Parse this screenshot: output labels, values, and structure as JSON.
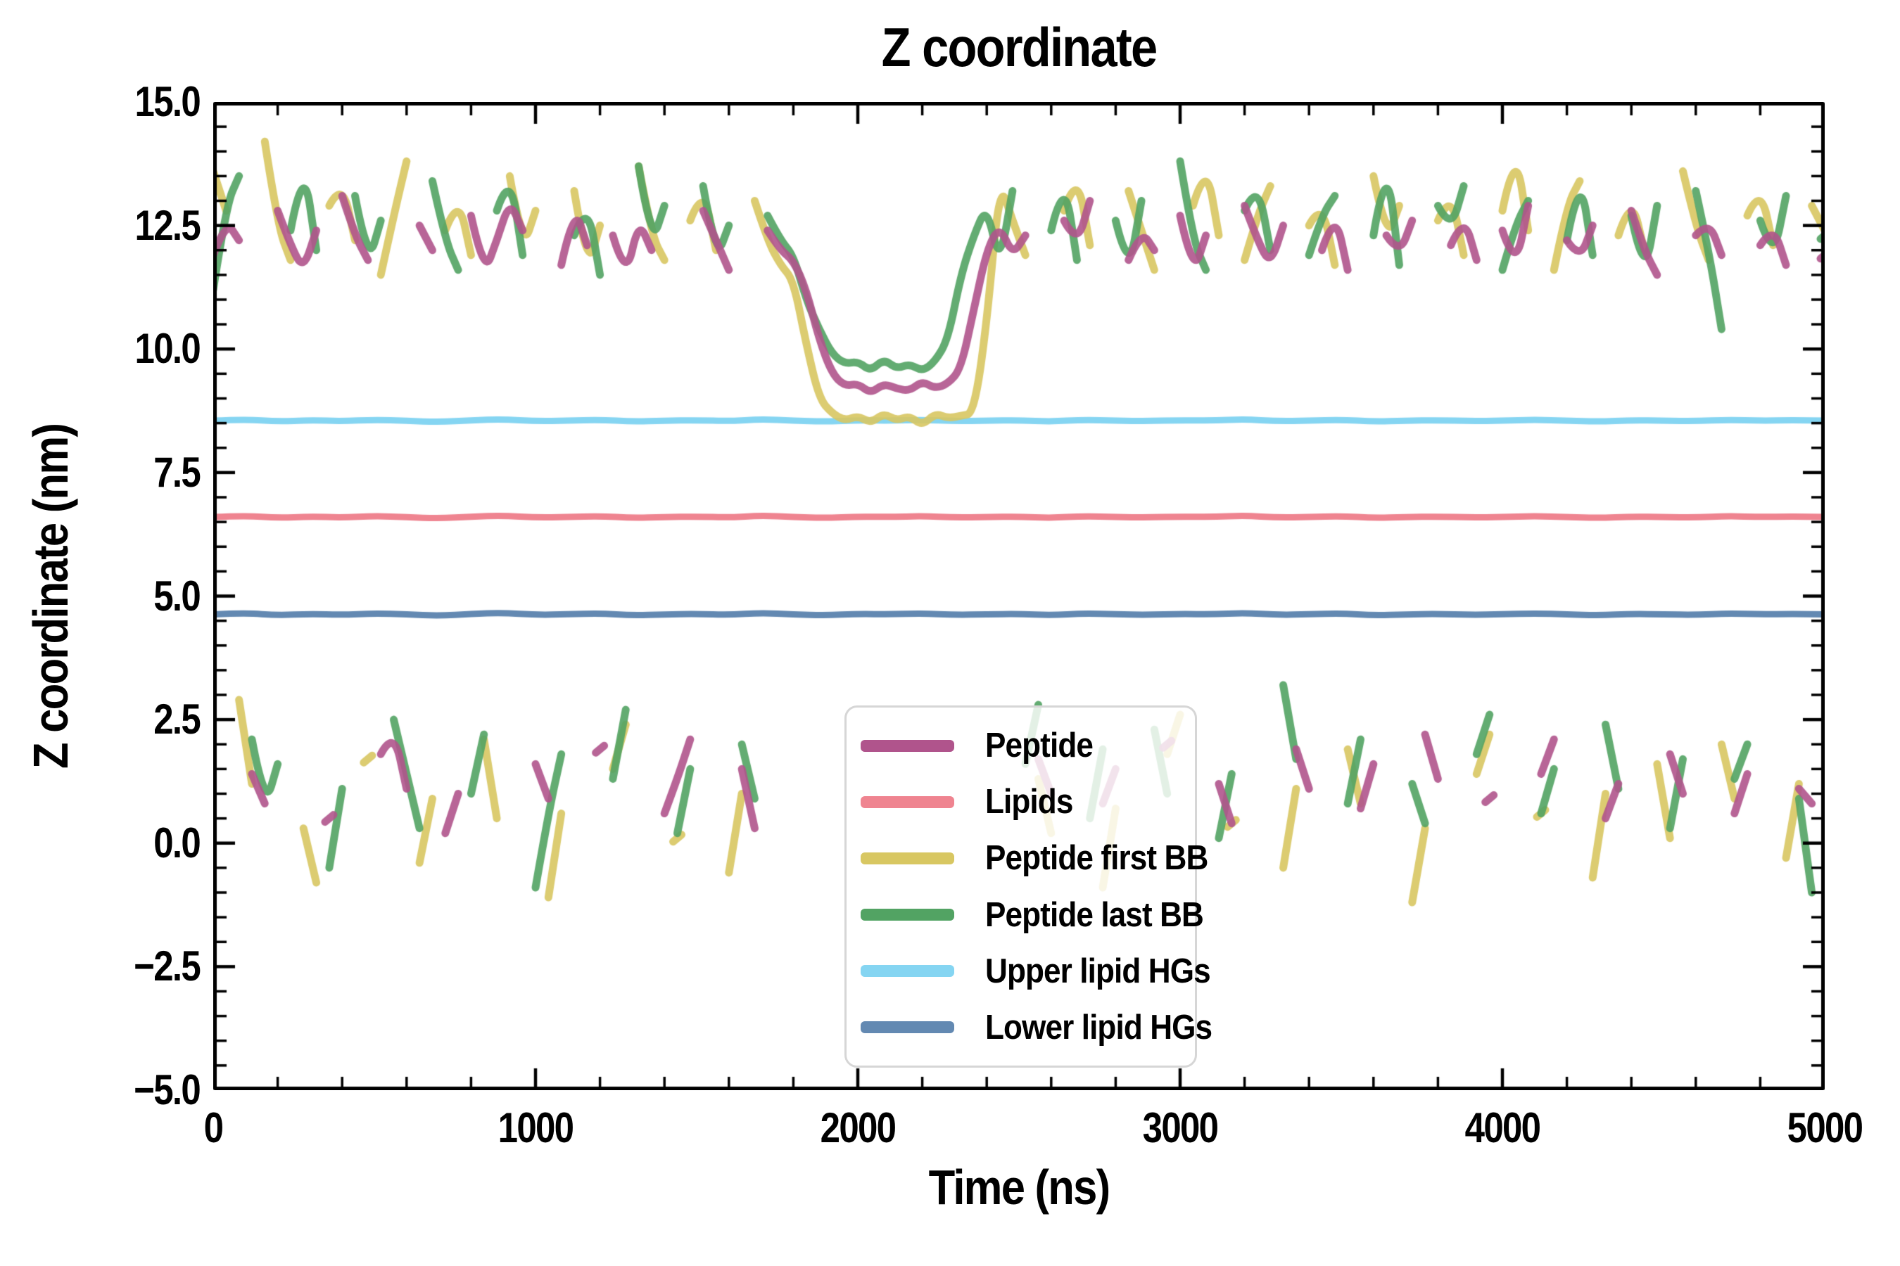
{
  "figure": {
    "title": "Z coordinate",
    "xlabel": "Time (ns)",
    "ylabel": "Z coordinate (nm)"
  },
  "chart_data": {
    "type": "line",
    "title": "Z coordinate",
    "xlabel": "Time (ns)",
    "ylabel": "Z coordinate (nm)",
    "xlim": [
      0,
      5000
    ],
    "ylim": [
      -5.0,
      15.0
    ],
    "grid": false,
    "background": "#ffffff",
    "axis_color": "#000000",
    "xticks": {
      "major": [
        0,
        1000,
        2000,
        3000,
        4000,
        5000
      ],
      "labels": [
        "0",
        "1000",
        "2000",
        "3000",
        "4000",
        "5000"
      ],
      "minor_step": 200
    },
    "yticks": {
      "major": [
        15.0,
        12.5,
        10.0,
        7.5,
        5.0,
        2.5,
        0.0,
        -2.5,
        -5.0
      ],
      "labels": [
        "15.0",
        "12.5",
        "10.0",
        "7.5",
        "5.0",
        "2.5",
        "0.0",
        "−2.5",
        "−5.0"
      ],
      "minor_step": 0.5
    },
    "legend": {
      "position": "lower center"
    },
    "annotations": {
      "membrane_binding_event_ns": [
        1800,
        2400
      ],
      "note_top_cluster_mean_nm": 12.3,
      "note_bottom_cluster_mean_nm": 1.0
    },
    "series": [
      {
        "name": "Peptide",
        "color": "#b0548c",
        "linewidth": 11,
        "alpha": 0.9,
        "zorder": 6,
        "break_jump": 3,
        "x0": 0,
        "dx": 40,
        "y": [
          11.9,
          12.6,
          12.2,
          1.4,
          0.8,
          12.8,
          12.1,
          11.6,
          12.4,
          0.5,
          13.1,
          12.3,
          11.8,
          1.8,
          2.3,
          1.1,
          12.5,
          12.0,
          0.2,
          1.0,
          12.7,
          11.5,
          12.2,
          13.0,
          12.4,
          1.6,
          0.9,
          11.7,
          12.9,
          12.1,
          1.9,
          12.3,
          11.4,
          12.6,
          12.0,
          0.6,
          1.3,
          2.1,
          12.8,
          12.2,
          11.6,
          1.5,
          0.3,
          12.4,
          12.0,
          11.8,
          11.2,
          10.2,
          9.5,
          9.25,
          9.3,
          9.1,
          9.3,
          9.2,
          9.15,
          9.35,
          9.2,
          9.3,
          9.6,
          10.8,
          12.0,
          12.5,
          11.9,
          12.3,
          1.7,
          1.0,
          12.6,
          12.1,
          13.0,
          0.8,
          1.5,
          11.8,
          12.4,
          12.0,
          2.0,
          12.7,
          11.5,
          12.3,
          1.2,
          0.4,
          12.9,
          12.2,
          11.7,
          12.5,
          1.9,
          1.1,
          12.0,
          12.8,
          11.6,
          0.7,
          1.6,
          12.3,
          11.9,
          12.6,
          2.2,
          1.3,
          12.1,
          12.7,
          11.8,
          0.9,
          12.4,
          11.6,
          12.9,
          1.4,
          2.1,
          12.2,
          11.8,
          12.5,
          0.5,
          1.2,
          12.8,
          12.0,
          11.5,
          1.8,
          1.0,
          12.3,
          12.6,
          11.9,
          0.6,
          1.4,
          12.1,
          12.5,
          11.7,
          1.1,
          0.8,
          11.9
        ]
      },
      {
        "name": "Lipids",
        "color": "#ef8490",
        "linewidth": 9,
        "alpha": 1.0,
        "zorder": 1,
        "x0": 0,
        "dx": 100,
        "y": [
          6.6,
          6.63,
          6.58,
          6.61,
          6.59,
          6.62,
          6.6,
          6.57,
          6.61,
          6.63,
          6.59,
          6.6,
          6.62,
          6.58,
          6.6,
          6.61,
          6.59,
          6.63,
          6.6,
          6.58,
          6.61,
          6.6,
          6.62,
          6.59,
          6.6,
          6.61,
          6.58,
          6.62,
          6.6,
          6.59,
          6.61,
          6.6,
          6.63,
          6.59,
          6.6,
          6.62,
          6.58,
          6.6,
          6.61,
          6.59,
          6.6,
          6.62,
          6.6,
          6.58,
          6.61,
          6.6,
          6.59,
          6.62,
          6.6,
          6.61,
          6.6
        ]
      },
      {
        "name": "Peptide first BB",
        "color": "#d8c762",
        "linewidth": 11,
        "alpha": 0.9,
        "zorder": 4,
        "break_jump": 3,
        "x0": 0,
        "dx": 40,
        "y": [
          13.6,
          12.8,
          2.9,
          1.2,
          14.2,
          12.5,
          11.8,
          0.3,
          -0.8,
          12.9,
          13.4,
          12.2,
          1.7,
          11.5,
          12.7,
          13.8,
          -0.4,
          0.9,
          12.4,
          13.1,
          11.9,
          2.1,
          0.5,
          13.5,
          12.0,
          12.8,
          -1.1,
          0.6,
          13.2,
          11.6,
          12.5,
          1.5,
          2.4,
          13.7,
          12.3,
          11.8,
          0.1,
          12.6,
          13.3,
          12.0,
          -0.6,
          1.0,
          13.0,
          12.2,
          11.7,
          11.4,
          10.1,
          9.0,
          8.7,
          8.55,
          8.65,
          8.5,
          8.7,
          8.55,
          8.65,
          8.45,
          8.7,
          8.6,
          8.65,
          8.7,
          10.5,
          13.4,
          12.6,
          11.9,
          1.3,
          0.2,
          12.8,
          13.6,
          12.1,
          -0.9,
          0.7,
          13.2,
          12.4,
          11.6,
          1.8,
          2.6,
          12.9,
          13.8,
          12.3,
          0.4,
          11.8,
          12.7,
          13.3,
          -0.5,
          1.1,
          12.5,
          13.0,
          11.7,
          1.9,
          0.8,
          13.5,
          12.2,
          12.9,
          -1.2,
          0.3,
          12.6,
          13.2,
          11.9,
          1.4,
          2.2,
          12.8,
          14.1,
          12.4,
          0.6,
          11.6,
          12.9,
          13.4,
          -0.7,
          1.0,
          12.3,
          13.1,
          12.0,
          1.6,
          0.1,
          13.6,
          12.5,
          11.8,
          2.0,
          0.9,
          12.7,
          13.3,
          12.1,
          -0.3,
          1.2,
          12.9,
          12.4
        ]
      },
      {
        "name": "Peptide last BB",
        "color": "#52a363",
        "linewidth": 11,
        "alpha": 0.9,
        "zorder": 5,
        "break_jump": 3,
        "x0": 0,
        "dx": 40,
        "y": [
          11.2,
          12.9,
          13.5,
          2.1,
          0.7,
          1.6,
          12.4,
          13.8,
          12.0,
          -0.5,
          1.1,
          13.1,
          11.7,
          12.6,
          2.5,
          1.4,
          0.3,
          13.4,
          12.2,
          11.6,
          1.0,
          2.2,
          12.8,
          13.6,
          11.9,
          -0.9,
          0.6,
          1.8,
          12.3,
          13.0,
          11.5,
          1.3,
          2.7,
          13.7,
          12.1,
          12.9,
          0.2,
          1.5,
          13.3,
          11.8,
          12.5,
          2.0,
          0.9,
          12.7,
          12.2,
          11.9,
          11.0,
          10.4,
          9.9,
          9.7,
          9.75,
          9.55,
          9.8,
          9.6,
          9.7,
          9.55,
          9.75,
          10.2,
          11.5,
          12.3,
          12.9,
          11.7,
          13.2,
          1.6,
          2.8,
          12.4,
          13.5,
          11.8,
          0.5,
          1.9,
          12.6,
          11.5,
          13.0,
          2.3,
          1.0,
          13.8,
          12.2,
          11.6,
          0.1,
          1.4,
          12.8,
          13.4,
          12.0,
          3.2,
          1.7,
          11.9,
          12.7,
          13.1,
          0.8,
          2.1,
          12.3,
          13.9,
          11.7,
          1.2,
          0.4,
          12.9,
          12.4,
          13.3,
          1.8,
          2.6,
          11.6,
          12.5,
          13.0,
          0.6,
          1.5,
          12.2,
          13.6,
          11.9,
          2.4,
          1.1,
          12.7,
          11.4,
          12.9,
          0.3,
          1.7,
          13.2,
          12.0,
          10.4,
          1.3,
          2.0,
          12.6,
          11.8,
          13.1,
          0.9,
          -1.0,
          12.3
        ]
      },
      {
        "name": "Upper lipid HGs",
        "color": "#85d5f2",
        "linewidth": 9,
        "alpha": 1.0,
        "zorder": 2,
        "x0": 0,
        "dx": 100,
        "y": [
          8.55,
          8.58,
          8.53,
          8.56,
          8.54,
          8.57,
          8.55,
          8.52,
          8.56,
          8.58,
          8.54,
          8.55,
          8.57,
          8.53,
          8.55,
          8.56,
          8.54,
          8.58,
          8.55,
          8.53,
          8.56,
          8.55,
          8.57,
          8.54,
          8.55,
          8.56,
          8.53,
          8.57,
          8.55,
          8.54,
          8.56,
          8.55,
          8.58,
          8.54,
          8.55,
          8.57,
          8.53,
          8.55,
          8.56,
          8.54,
          8.55,
          8.57,
          8.55,
          8.53,
          8.56,
          8.55,
          8.54,
          8.57,
          8.55,
          8.56,
          8.55
        ]
      },
      {
        "name": "Lower lipid HGs",
        "color": "#6389b2",
        "linewidth": 9,
        "alpha": 1.0,
        "zorder": 3,
        "x0": 0,
        "dx": 100,
        "y": [
          4.63,
          4.66,
          4.61,
          4.64,
          4.62,
          4.65,
          4.63,
          4.6,
          4.64,
          4.66,
          4.62,
          4.63,
          4.65,
          4.61,
          4.63,
          4.64,
          4.62,
          4.66,
          4.63,
          4.61,
          4.64,
          4.63,
          4.65,
          4.62,
          4.63,
          4.64,
          4.61,
          4.65,
          4.63,
          4.62,
          4.64,
          4.63,
          4.66,
          4.62,
          4.63,
          4.65,
          4.61,
          4.63,
          4.64,
          4.62,
          4.63,
          4.65,
          4.63,
          4.61,
          4.64,
          4.63,
          4.62,
          4.65,
          4.63,
          4.64,
          4.63
        ]
      }
    ]
  }
}
